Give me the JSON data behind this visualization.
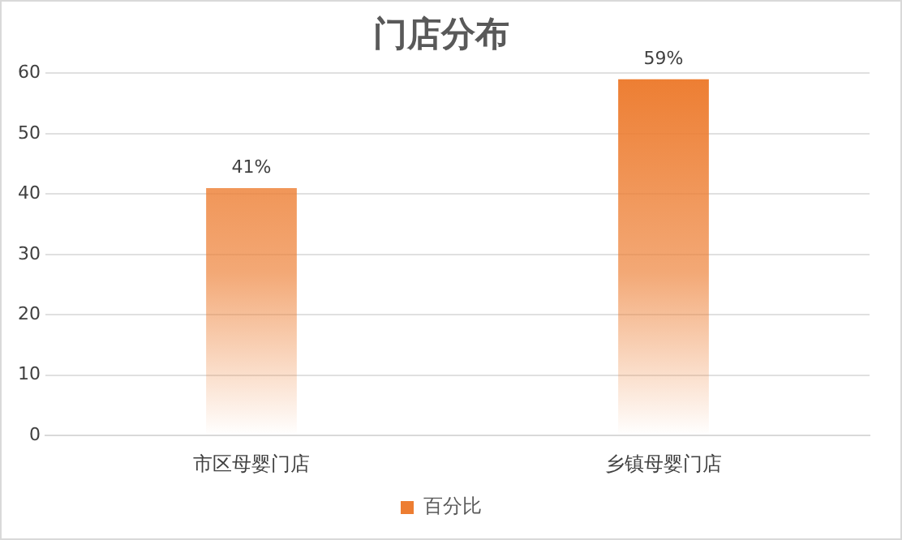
{
  "chart_data": {
    "type": "bar",
    "title": "门店分布",
    "categories": [
      "市区母婴门店",
      "乡镇母婴门店"
    ],
    "series": [
      {
        "name": "百分比",
        "color": "#ed7d31",
        "values": [
          41,
          59
        ],
        "value_labels": [
          "41%",
          "59%"
        ]
      }
    ],
    "ylim": [
      0,
      60
    ],
    "yticks": [
      0,
      10,
      20,
      30,
      40,
      50,
      60
    ],
    "grid": "y",
    "legend": "bottom"
  }
}
